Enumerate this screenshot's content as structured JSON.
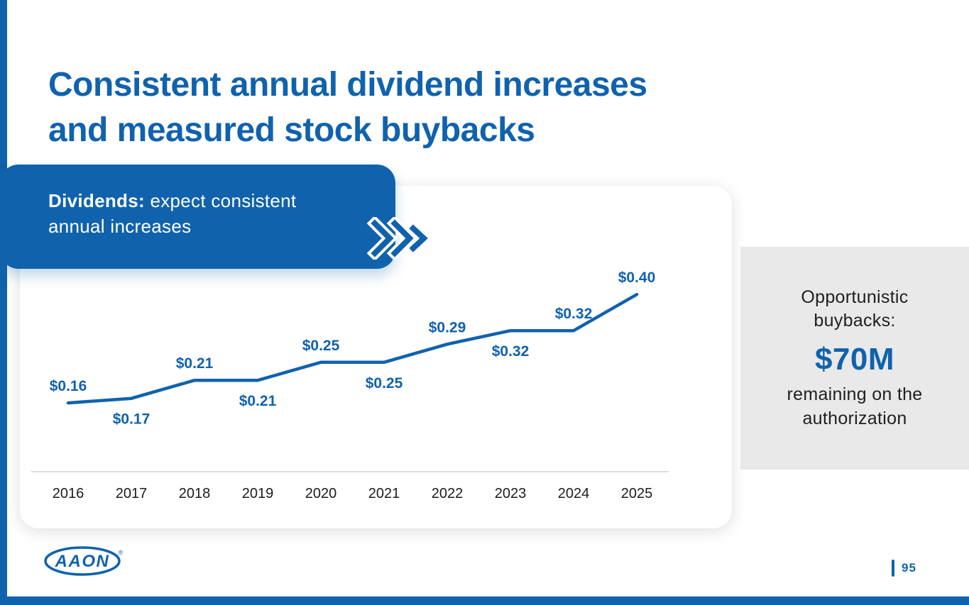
{
  "colors": {
    "brand_blue": "#1062ad",
    "panel_gray": "#e9e9e9",
    "axis_gray": "#d2d2d2",
    "text_dark": "#202020"
  },
  "title": {
    "line1": "Consistent annual dividend increases",
    "line2": "and measured stock buybacks"
  },
  "callout": {
    "label": "Dividends:",
    "text_line1": "expect consistent",
    "text_line2": "annual increases"
  },
  "icons": {
    "callout_chevron": "double-chevron-right"
  },
  "buybacks": {
    "heading_lines": [
      "Opportunistic",
      "buybacks:"
    ],
    "amount": "$70M",
    "caption_lines": [
      "remaining on the",
      "authorization"
    ]
  },
  "chart_data": {
    "type": "line",
    "categories": [
      "2016",
      "2017",
      "2018",
      "2019",
      "2020",
      "2021",
      "2022",
      "2023",
      "2024",
      "2025"
    ],
    "values": [
      0.16,
      0.17,
      0.21,
      0.21,
      0.25,
      0.25,
      0.29,
      0.32,
      0.32,
      0.4
    ],
    "labels": [
      "$0.16",
      "$0.17",
      "$0.21",
      "$0.21",
      "$0.25",
      "$0.25",
      "$0.29",
      "$0.32",
      "$0.32",
      "$0.40"
    ],
    "label_positions": [
      "above",
      "below",
      "above",
      "below",
      "above",
      "below",
      "above",
      "below",
      "above",
      "above"
    ],
    "line_color": "#1062ad",
    "xlabel": "",
    "ylabel": "",
    "ylim": [
      0.12,
      0.44
    ],
    "grid": false,
    "legend": false
  },
  "footer": {
    "logo_text": "AAON",
    "logo_mark": "®",
    "page_number": "95"
  }
}
